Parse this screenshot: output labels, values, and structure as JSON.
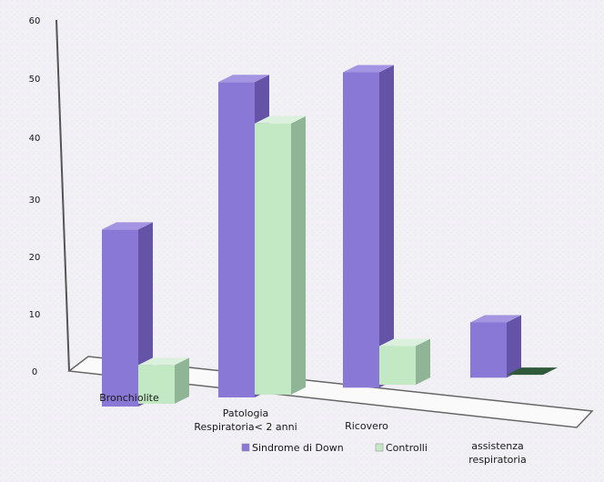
{
  "chart_data": {
    "type": "bar",
    "title": "",
    "xlabel": "",
    "ylabel": "",
    "ylim": [
      0,
      60
    ],
    "yticks": [
      "0",
      "10",
      "20",
      "30",
      "40",
      "50",
      "60"
    ],
    "categories": [
      [
        "Bronchiolite"
      ],
      [
        "Patologia",
        "Respiratoria< 2 anni"
      ],
      [
        "Ricovero"
      ],
      [
        "assistenza",
        "respiratoria"
      ]
    ],
    "series": [
      {
        "name": "Sindrome di Down",
        "values": [
          32,
          57,
          57,
          10
        ],
        "color": "#8a78d6"
      },
      {
        "name": "Controlli",
        "values": [
          7,
          49,
          7,
          0
        ],
        "color": "#c2e8c4"
      }
    ],
    "grid": false,
    "legend_position": "bottom",
    "style": "3d-bar"
  }
}
